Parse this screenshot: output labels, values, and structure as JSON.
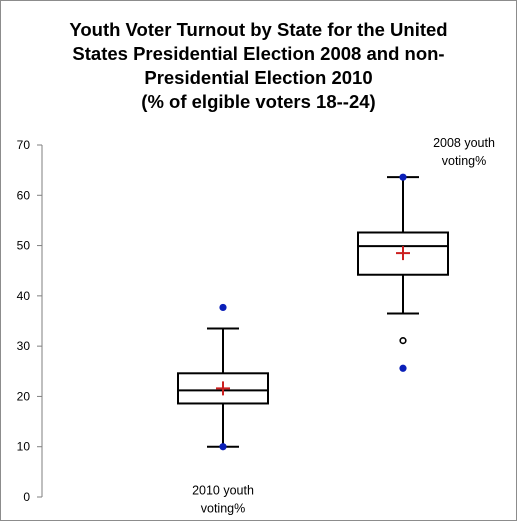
{
  "title_lines": [
    "Youth Voter Turnout by State for the United",
    "States Presidential Election 2008  and non-",
    "Presidential Election 2010",
    "(% of elgible voters 18--24)"
  ],
  "chart_data": {
    "type": "boxplot",
    "title": "Youth Voter Turnout by State for the United States Presidential Election 2008  and non-Presidential Election 2010 (% of elgible voters 18--24)",
    "xlabel": "",
    "ylabel": "",
    "ylim": [
      0,
      70
    ],
    "yticks": [
      0,
      10,
      20,
      30,
      40,
      50,
      60,
      70
    ],
    "grid": false,
    "boxes": [
      {
        "label_lines": [
          "2010 youth",
          "voting%"
        ],
        "label_position": "below",
        "whisker_low": 10,
        "q1": 18.6,
        "median": 21.2,
        "q3": 24.6,
        "whisker_high": 33.5,
        "mean": 21.6,
        "min": 10,
        "max": 37.7,
        "outliers": []
      },
      {
        "label_lines": [
          "2008 youth",
          "voting%"
        ],
        "label_position": "above",
        "whisker_low": 36.5,
        "q1": 44.2,
        "median": 49.9,
        "q3": 52.6,
        "whisker_high": 63.6,
        "mean": 48.5,
        "min": 25.6,
        "max": 63.6,
        "outliers": [
          31.1
        ]
      }
    ]
  },
  "colors": {
    "box": "#000000",
    "mean_marker": "#cc1f1f",
    "min_max_marker": "#0a1fb8",
    "outlier": "#000000",
    "axis": "#7f7f7f"
  }
}
